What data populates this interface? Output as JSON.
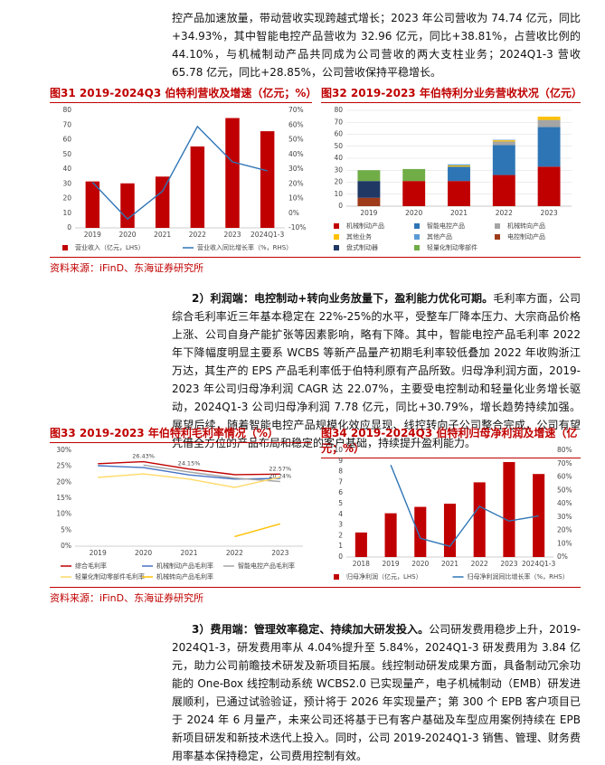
{
  "paragraphs": [
    {
      "body": "控产品加速放量，带动营收实现跨越式增长；2023 年公司营收为 74.74 亿元，同比+34.93%，其中智能电控产品营收为 32.96 亿元，同比+38.81%，占营收比例的 44.10%，与机械制动产品共同成为公司营收的两大支柱业务；2024Q1-3 营收 65.78 亿元，同比+28.85%，公司营收保持平稳增长。"
    },
    {
      "lead": "2）利润端：电控制动+转向业务放量下，盈利能力优化可期。",
      "body": "毛利率方面，公司综合毛利率近三年基本稳定在 22%-25%的水平，受整车厂降本压力、大宗商品价格上涨、公司自身产能扩张等因素影响，略有下降。其中，智能电控产品毛利率 2022 年下降幅度明显主要系 WCBS 等新产品量产初期毛利率较低叠加 2022 年收购浙江万达，其生产的 EPS 产品毛利率低于伯特利原有产品所致。归母净利润方面，2019-2023 年公司归母净利润 CAGR 达 22.07%，主要受电控制动和轻量化业务增长驱动，2024Q1-3 公司归母净利润 7.78 亿元，同比+30.79%，增长趋势持续加强。展望后续，随着智能电控产品规模化效应显现、线控转向子公司整合完成，公司有望凭借全方位的产品布局和稳定的客户基础，持续提升盈利能力。"
    },
    {
      "lead": "3）费用端：管理效率稳定、持续加大研发投入。",
      "body": "公司研发费用稳步上升，2019-2024Q1-3，研发费用率从 4.04%提升至 5.84%，2024Q1-3 研发费用为 3.84 亿元，助力公司前瞻技术研发及新项目拓展。线控制动研发成果方面，具备制动冗余功能的 One-Box 线控制动系统 WCBS2.0 已实现量产，电子机械制动（EMB）研发进展顺利，已通过试验验证，预计将于 2026 年实现量产；第 300 个 EPB 客户项目已于 2024 年 6 月量产，未来公司还将基于已有客户基础及车型应用案例持续在 EPB 新项目研发和新技术迭代上投入。同时，公司 2019-2024Q1-3 销售、管理、财务费用率基本保持稳定，公司费用控制有效。"
    }
  ],
  "chart_data": [
    {
      "type": "combo",
      "title": "图31 2019-2024Q3 伯特利营收及增速（亿元；%）",
      "categories": [
        "2019",
        "2020",
        "2021",
        "2022",
        "2023",
        "2024Q1-3"
      ],
      "series": [
        {
          "name": "营业收入（亿元，LHS）",
          "color": "#c00000",
          "kind": "bar",
          "values": [
            31.6,
            30.3,
            34.9,
            55.4,
            74.74,
            65.78
          ]
        },
        {
          "name": "营业收入同比增长率（%，RHS）",
          "color": "#2e75b6",
          "kind": "line",
          "axis": "y2",
          "values": [
            21,
            -4,
            15,
            59,
            34.93,
            28.85
          ]
        }
      ],
      "ylim": [
        0,
        80
      ],
      "yticks": [
        0,
        10,
        20,
        30,
        40,
        50,
        60,
        70,
        80
      ],
      "y2lim": [
        -10,
        70
      ],
      "y2ticks": [
        {
          "value": -10,
          "label": "-10%"
        },
        {
          "value": 0,
          "label": "0%"
        },
        {
          "value": 10,
          "label": "10%"
        },
        {
          "value": 20,
          "label": "20%"
        },
        {
          "value": 30,
          "label": "30%"
        },
        {
          "value": 40,
          "label": "40%"
        },
        {
          "value": 50,
          "label": "50%"
        },
        {
          "value": 60,
          "label": "60%"
        },
        {
          "value": 70,
          "label": "70%"
        }
      ],
      "grid": false
    },
    {
      "type": "stacked_bar",
      "title": "图32 2019-2023 年伯特利分业务营收状况（亿元）",
      "categories": [
        "2019",
        "2020",
        "2021",
        "2022",
        "2023"
      ],
      "series": [
        {
          "name": "机械制动产品",
          "color": "#c00000",
          "values": [
            null,
            21,
            21,
            26,
            33
          ]
        },
        {
          "name": "智能电控产品",
          "color": "#2e75b6",
          "values": [
            null,
            null,
            12,
            25,
            33
          ]
        },
        {
          "name": "机械转向产品",
          "color": "#a5a5a5",
          "values": [
            null,
            null,
            null,
            3,
            6
          ]
        },
        {
          "name": "其他业务",
          "color": "#ffc000",
          "values": [
            null,
            null,
            1,
            1,
            2.7
          ]
        },
        {
          "name": "其他产品",
          "color": "#5b9bd5",
          "values": [
            null,
            null,
            0.9,
            0.4,
            null
          ]
        },
        {
          "name": "电控制动产品",
          "color": "#9e3b1b",
          "values": [
            7,
            null,
            null,
            null,
            null
          ]
        },
        {
          "name": "盘式制动器",
          "color": "#1f3864",
          "values": [
            14,
            null,
            null,
            null,
            null
          ]
        },
        {
          "name": "轻量化制动零部件",
          "color": "#70ad47",
          "values": [
            9,
            10,
            null,
            null,
            null
          ]
        }
      ],
      "ylim": [
        0,
        80
      ],
      "yticks": [
        0,
        10,
        20,
        30,
        40,
        50,
        60,
        70,
        80
      ],
      "grid": true
    },
    {
      "type": "line",
      "title": "图33 2019-2023 年伯特利毛利率情况（%）",
      "categories": [
        "2019",
        "2020",
        "2021",
        "2022",
        "2023"
      ],
      "series": [
        {
          "name": "综合毛利率",
          "color": "#c00000",
          "values": [
            25.8,
            26.43,
            24.15,
            22.4,
            22.57
          ],
          "value_labels": [
            null,
            "26.43%",
            "24.15%",
            null,
            "22.57%"
          ]
        },
        {
          "name": "机械制动产品毛利率",
          "color": "#4472c4",
          "values": [
            25.2,
            24.6,
            22.3,
            21,
            21.2
          ]
        },
        {
          "name": "智能电控产品毛利率",
          "color": "#a5a5a5",
          "values": [
            null,
            25.4,
            23.2,
            21.3,
            20.24
          ],
          "value_labels": [
            null,
            null,
            null,
            null,
            "20.24%"
          ]
        },
        {
          "name": "轻量化制动零部件毛利率",
          "color": "#ffd966",
          "values": [
            21.5,
            22.6,
            21,
            18.4,
            21.6
          ]
        },
        {
          "name": "机械转向产品毛利率",
          "color": "#ffc000",
          "values": [
            null,
            null,
            null,
            3,
            7
          ]
        }
      ],
      "ylim": [
        0,
        30
      ],
      "yticks": [
        {
          "value": 0,
          "label": "0%"
        },
        {
          "value": 5,
          "label": "5%"
        },
        {
          "value": 10,
          "label": "10%"
        },
        {
          "value": 15,
          "label": "15%"
        },
        {
          "value": 20,
          "label": "20%"
        },
        {
          "value": 25,
          "label": "25%"
        },
        {
          "value": 30,
          "label": "30%"
        }
      ],
      "grid": false
    },
    {
      "type": "combo",
      "title": "图34 2019-2024Q3 伯特利归母净利润及增速（亿元；%）",
      "categories": [
        "2018",
        "2019",
        "2020",
        "2021",
        "2022",
        "2023",
        "2024Q1-3"
      ],
      "series": [
        {
          "name": "归母净利润（亿元，LHS）",
          "color": "#c00000",
          "kind": "bar",
          "values": [
            2.3,
            4.1,
            4.7,
            5.0,
            7.0,
            8.9,
            7.78
          ]
        },
        {
          "name": "归母净利润同比增长率（%，RHS）",
          "color": "#2e75b6",
          "kind": "line",
          "axis": "y2",
          "values": [
            null,
            69,
            14,
            8,
            38,
            27,
            30.79
          ]
        }
      ],
      "ylim": [
        0,
        10
      ],
      "yticks": [
        0,
        1,
        2,
        3,
        4,
        5,
        6,
        7,
        8,
        9,
        10
      ],
      "y2lim": [
        0,
        80
      ],
      "y2ticks": [
        {
          "value": 0,
          "label": "0%"
        },
        {
          "value": 10,
          "label": "10%"
        },
        {
          "value": 20,
          "label": "20%"
        },
        {
          "value": 30,
          "label": "30%"
        },
        {
          "value": 40,
          "label": "40%"
        },
        {
          "value": 50,
          "label": "50%"
        },
        {
          "value": 60,
          "label": "60%"
        },
        {
          "value": 70,
          "label": "70%"
        },
        {
          "value": 80,
          "label": "80%"
        }
      ],
      "grid": false
    }
  ],
  "sources": [
    "资料来源：iFinD、东海证券研究所",
    "资料来源：iFinD、东海证券研究所"
  ]
}
